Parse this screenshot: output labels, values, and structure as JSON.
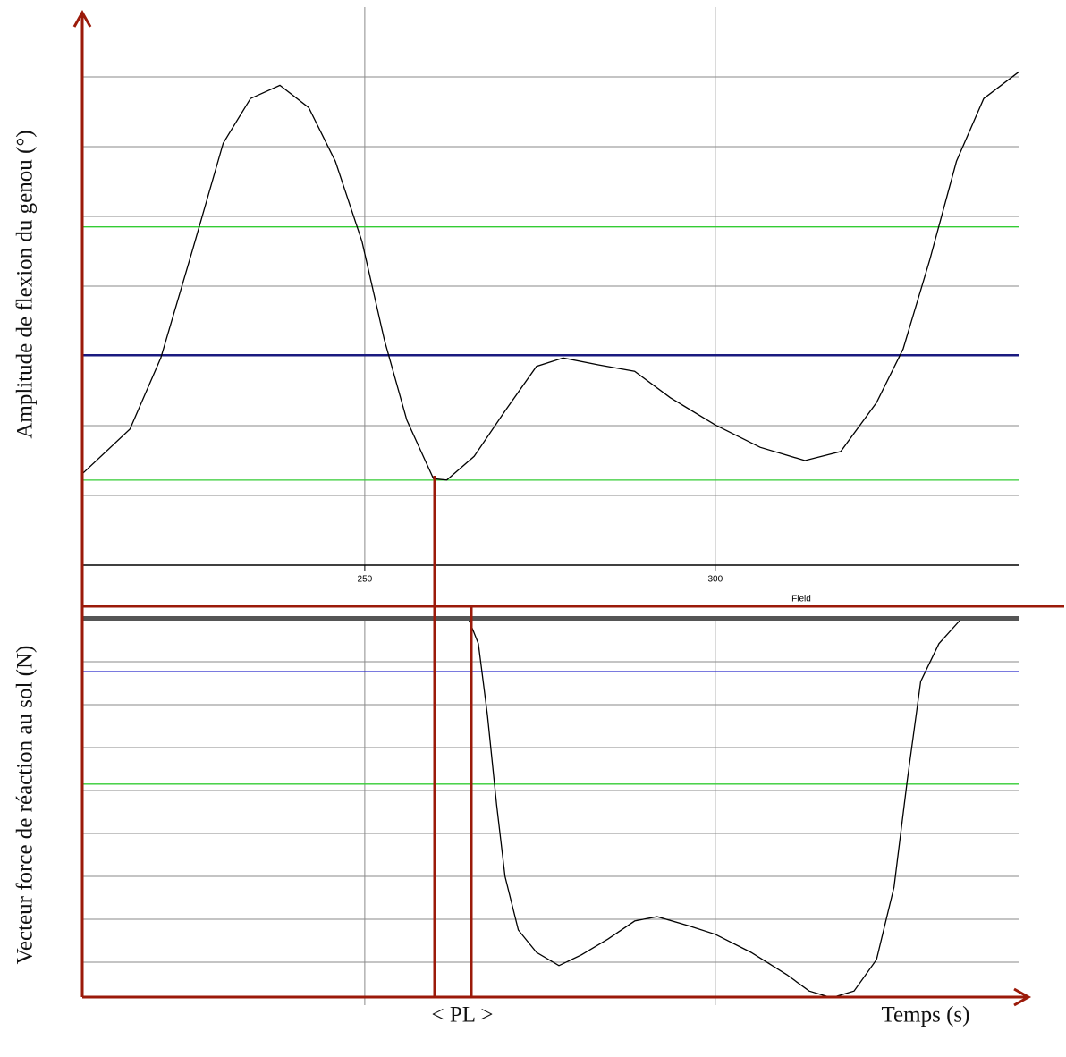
{
  "chart_data": [
    {
      "type": "line",
      "ylabel": "Amplitude de flexion du genou (°)",
      "xlabel": "Field",
      "xlim": [
        209.7,
        343.4
      ],
      "ylim": [
        0,
        8
      ],
      "xticks": [
        250,
        300
      ],
      "ygrid": [
        1,
        2,
        3,
        4,
        5,
        6,
        7
      ],
      "hlines": [
        {
          "value": 4.85,
          "color": "#33cc33"
        },
        {
          "value": 3.01,
          "color": "#1a1a80"
        },
        {
          "value": 1.22,
          "color": "#33cc33"
        }
      ],
      "x": [
        209.7,
        216.5,
        220.9,
        225.4,
        229.8,
        233.7,
        237.9,
        242.0,
        245.8,
        249.6,
        252.8,
        256.0,
        259.8,
        261.7,
        265.6,
        270.0,
        274.5,
        278.3,
        283.4,
        288.5,
        293.6,
        300.0,
        306.4,
        312.8,
        317.9,
        323.0,
        326.8,
        330.6,
        334.4,
        338.3,
        343.4
      ],
      "series": [
        {
          "color": "#000000",
          "values": [
            1.31,
            1.95,
            2.97,
            4.51,
            6.05,
            6.69,
            6.88,
            6.56,
            5.79,
            4.64,
            3.23,
            2.08,
            1.24,
            1.22,
            1.56,
            2.21,
            2.85,
            2.97,
            2.87,
            2.78,
            2.4,
            2.01,
            1.69,
            1.5,
            1.63,
            2.33,
            3.1,
            4.38,
            5.79,
            6.69,
            7.08
          ]
        }
      ]
    },
    {
      "type": "line",
      "ylabel": "Vecteur force de réaction au sol (N)",
      "xlabel": "Temps (s)",
      "annotation": "< PL >",
      "xlim": [
        209.7,
        343.4
      ],
      "ylim": [
        -9,
        0
      ],
      "xgrid": [
        250,
        300
      ],
      "ygrid": [
        -1,
        -2,
        -3,
        -4,
        -5,
        -6,
        -7,
        -8
      ],
      "hlines": [
        {
          "value": -1.23,
          "color": "#2a2acc"
        },
        {
          "value": -3.85,
          "color": "#33cc33"
        }
      ],
      "x": [
        264.8,
        266.2,
        267.5,
        268.8,
        270.0,
        271.9,
        274.5,
        277.7,
        280.9,
        284.7,
        288.5,
        291.7,
        296.2,
        300.0,
        305.1,
        310.2,
        313.4,
        316.6,
        319.8,
        323.0,
        325.5,
        327.4,
        329.3,
        331.9,
        335.1
      ],
      "series": [
        {
          "color": "#000000",
          "values": [
            0,
            -0.58,
            -2.25,
            -4.33,
            -6.0,
            -7.25,
            -7.77,
            -8.08,
            -7.83,
            -7.46,
            -7.04,
            -6.94,
            -7.15,
            -7.35,
            -7.77,
            -8.29,
            -8.67,
            -8.83,
            -8.67,
            -7.94,
            -6.25,
            -3.75,
            -1.46,
            -0.58,
            0
          ]
        }
      ]
    }
  ]
}
